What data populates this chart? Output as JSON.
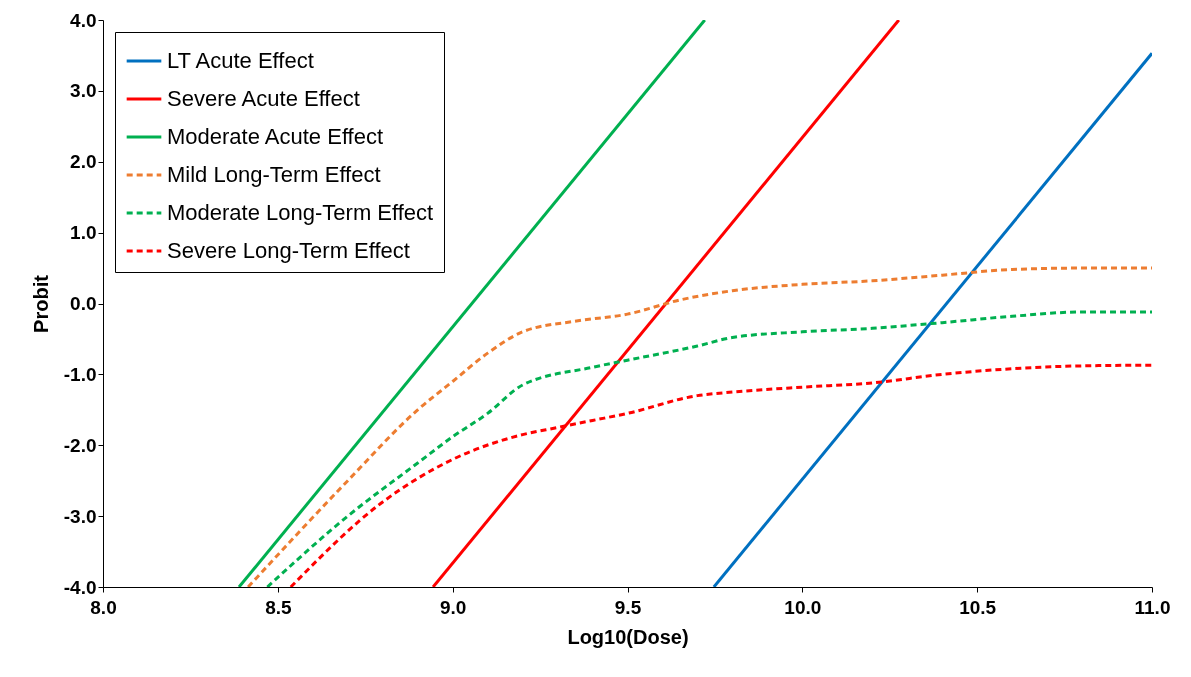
{
  "chart_data": {
    "type": "line",
    "xlabel": "Log10(Dose)",
    "ylabel": "Probit",
    "xlim": [
      8,
      11
    ],
    "ylim": [
      -4,
      4
    ],
    "xticks": [
      {
        "value": 8,
        "label": "8.0"
      },
      {
        "value": 8.5,
        "label": "8.5"
      },
      {
        "value": 9,
        "label": "9.0"
      },
      {
        "value": 9.5,
        "label": "9.5"
      },
      {
        "value": 10,
        "label": "10.0"
      },
      {
        "value": 10.5,
        "label": "10.5"
      },
      {
        "value": 11,
        "label": "11.0"
      }
    ],
    "yticks": [
      {
        "value": -4,
        "label": "-4.0"
      },
      {
        "value": -3,
        "label": "-3.0"
      },
      {
        "value": -2,
        "label": "-2.0"
      },
      {
        "value": -1,
        "label": "-1.0"
      },
      {
        "value": 0,
        "label": "0.0"
      },
      {
        "value": 1,
        "label": "1.0"
      },
      {
        "value": 2,
        "label": "2.0"
      },
      {
        "value": 3,
        "label": "3.0"
      },
      {
        "value": 4,
        "label": "4.0"
      }
    ],
    "grid": false,
    "legend": "top left",
    "marker": "none",
    "series": [
      {
        "name": "LT Acute Effect",
        "color": "#0070c0",
        "line_style": "solid",
        "x": [
          9.747,
          11
        ],
        "values": [
          -4,
          3.53
        ]
      },
      {
        "name": "Severe Acute Effect",
        "color": "#ff0000",
        "line_style": "solid",
        "x": [
          8.944,
          10.276
        ],
        "values": [
          -4,
          4
        ]
      },
      {
        "name": "Moderate Acute Effect",
        "color": "#00b050",
        "line_style": "solid",
        "x": [
          8.389,
          9.721
        ],
        "values": [
          -4,
          4
        ]
      },
      {
        "name": "Mild Long-Term Effect",
        "color": "#ed7d31",
        "line_style": "dashed",
        "x": [
          8.415,
          8.7,
          8.9,
          9.0,
          9.1,
          9.2,
          9.35,
          9.5,
          9.65,
          9.8,
          10.0,
          10.2,
          10.4,
          10.6,
          10.8,
          11.0
        ],
        "values": [
          -4,
          -2.5,
          -1.5,
          -1.1,
          -0.7,
          -0.4,
          -0.25,
          -0.15,
          0.05,
          0.18,
          0.27,
          0.32,
          0.4,
          0.48,
          0.5,
          0.5
        ]
      },
      {
        "name": "Moderate Long-Term Effect",
        "color": "#00b050",
        "line_style": "dashed",
        "x": [
          8.47,
          8.7,
          8.9,
          9.0,
          9.1,
          9.2,
          9.4,
          9.5,
          9.7,
          9.8,
          10.0,
          10.2,
          10.4,
          10.6,
          10.8,
          11.0
        ],
        "values": [
          -4,
          -3.0,
          -2.25,
          -1.88,
          -1.55,
          -1.15,
          -0.9,
          -0.8,
          -0.6,
          -0.48,
          -0.4,
          -0.35,
          -0.27,
          -0.18,
          -0.12,
          -0.12
        ]
      },
      {
        "name": "Severe Long-Term Effect",
        "color": "#ff0000",
        "line_style": "dashed",
        "x": [
          8.537,
          8.8,
          9.0,
          9.2,
          9.3,
          9.4,
          9.5,
          9.7,
          9.8,
          10.0,
          10.2,
          10.4,
          10.6,
          10.8,
          11.0
        ],
        "values": [
          -4,
          -2.8,
          -2.2,
          -1.85,
          -1.75,
          -1.65,
          -1.55,
          -1.3,
          -1.25,
          -1.18,
          -1.12,
          -1.0,
          -0.92,
          -0.88,
          -0.87
        ]
      }
    ]
  }
}
